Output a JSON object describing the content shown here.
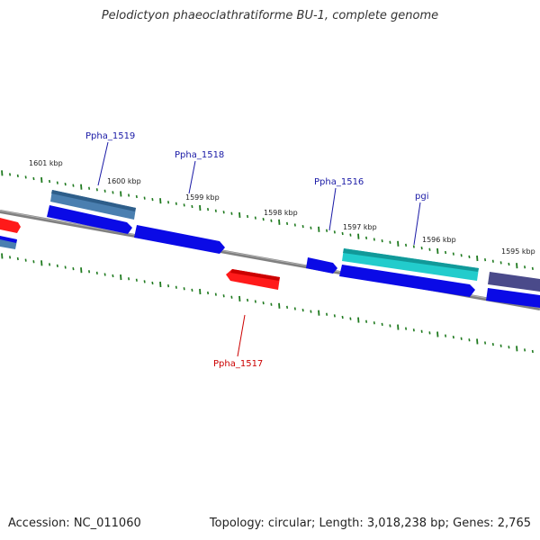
{
  "title": "Pelodictyon phaeoclathratiforme BU-1, complete genome",
  "footer": {
    "accession": "Accession: NC_011060",
    "summary": "Topology: circular; Length: 3,018,238 bp; Genes: 2,765"
  },
  "colors": {
    "backbone": "#808080",
    "tick": "#1f7a1f",
    "label_blue": "#1a1aa6",
    "label_red": "#cc0000",
    "gene_blue": "#0a0ae6",
    "gene_red": "#ff1a1a",
    "gene_steel": "#4a7fb0",
    "gene_cyan": "#22cccc",
    "gene_slate": "#4a4a8a"
  },
  "scale_labels": [
    "1601 kbp",
    "1600 kbp",
    "1599 kbp",
    "1598 kbp",
    "1597 kbp",
    "1596 kbp",
    "1595 kbp"
  ],
  "gene_labels": [
    {
      "name": "Ppha_1519",
      "color": "blue"
    },
    {
      "name": "Ppha_1518",
      "color": "blue"
    },
    {
      "name": "Ppha_1516",
      "color": "blue"
    },
    {
      "name": "pgi",
      "color": "blue"
    },
    {
      "name": "Ppha_1517",
      "color": "red"
    }
  ]
}
